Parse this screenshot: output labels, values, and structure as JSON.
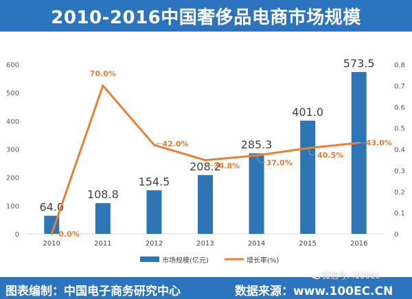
{
  "title": "2010-2016中国奢侈品电商市场规模",
  "footer": {
    "left": "图表编制：中国电子商务研究中心",
    "right": "数据来源：www.100EC.CN",
    "watermark": "微信号: i100ec"
  },
  "colors": {
    "brand": "#2d74bf",
    "bar": "#2e75b6",
    "line": "#ed7d31",
    "rate_label": "#ed7d31",
    "grid": "#d9d9d9"
  },
  "chart_data": {
    "type": "bar",
    "categories": [
      "2010",
      "2011",
      "2012",
      "2013",
      "2014",
      "2015",
      "2016"
    ],
    "series": [
      {
        "name": "市场规模(亿元)",
        "type": "bar",
        "axis": "left",
        "values": [
          64.0,
          108.8,
          154.5,
          208.2,
          285.3,
          401.0,
          573.5
        ],
        "labels": [
          "64.0",
          "108.8",
          "154.5",
          "208.2",
          "285.3",
          "401.0",
          "573.5"
        ]
      },
      {
        "name": "增长率(%)",
        "type": "line",
        "axis": "right",
        "values": [
          0.0,
          0.7,
          0.42,
          0.348,
          0.37,
          0.405,
          0.43
        ],
        "labels": [
          "0.0%",
          "70.0%",
          "42.0%",
          "34.8%",
          "37.0%",
          "40.5%",
          "43.0%"
        ]
      }
    ],
    "y_left": {
      "min": 0,
      "max": 600,
      "ticks": [
        "0",
        "100",
        "200",
        "300",
        "400",
        "500",
        "600"
      ]
    },
    "y_right": {
      "min": 0,
      "max": 0.8,
      "ticks": [
        "0",
        "0.1",
        "0.2",
        "0.3",
        "0.4",
        "0.5",
        "0.6",
        "0.7",
        "0.8"
      ]
    },
    "legend": [
      "市场规模(亿元)",
      "增长率(%)"
    ],
    "legend_position": "bottom",
    "grid": false
  }
}
